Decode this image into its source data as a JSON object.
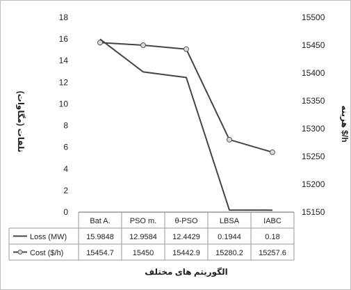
{
  "chart_data": {
    "type": "line",
    "categories": [
      "Bat A.",
      "PSO m.",
      "θ-PSO",
      "LBSA",
      "IABC"
    ],
    "series": [
      {
        "name": "Loss (MW)",
        "axis": "left",
        "values": [
          15.9848,
          12.9584,
          12.4429,
          0.1944,
          0.18
        ],
        "labels": [
          "15.9848",
          "12.9584",
          "12.4429",
          "0.1944",
          "0.18"
        ],
        "marker": "none",
        "color": "#444444"
      },
      {
        "name": "Cost ($/h)",
        "axis": "right",
        "values": [
          15454.7,
          15450,
          15442.9,
          15280.2,
          15257.6
        ],
        "labels": [
          "15454.7",
          "15450",
          "15442.9",
          "15280.2",
          "15257.6"
        ],
        "marker": "circle",
        "color": "#444444"
      }
    ],
    "left_axis": {
      "label": "تلفات (مگاوات)",
      "ylim": [
        0,
        18
      ],
      "ticks": [
        "0",
        "2",
        "4",
        "6",
        "8",
        "10",
        "12",
        "14",
        "16",
        "18"
      ]
    },
    "right_axis": {
      "label": "هزینه  $/h",
      "ylim": [
        15150,
        15500
      ],
      "ticks": [
        "15150",
        "15200",
        "15250",
        "15300",
        "15350",
        "15400",
        "15450",
        "15500"
      ]
    },
    "xlabel": "الگوریتم های مختلف",
    "grid": false,
    "legend": "data-table"
  }
}
